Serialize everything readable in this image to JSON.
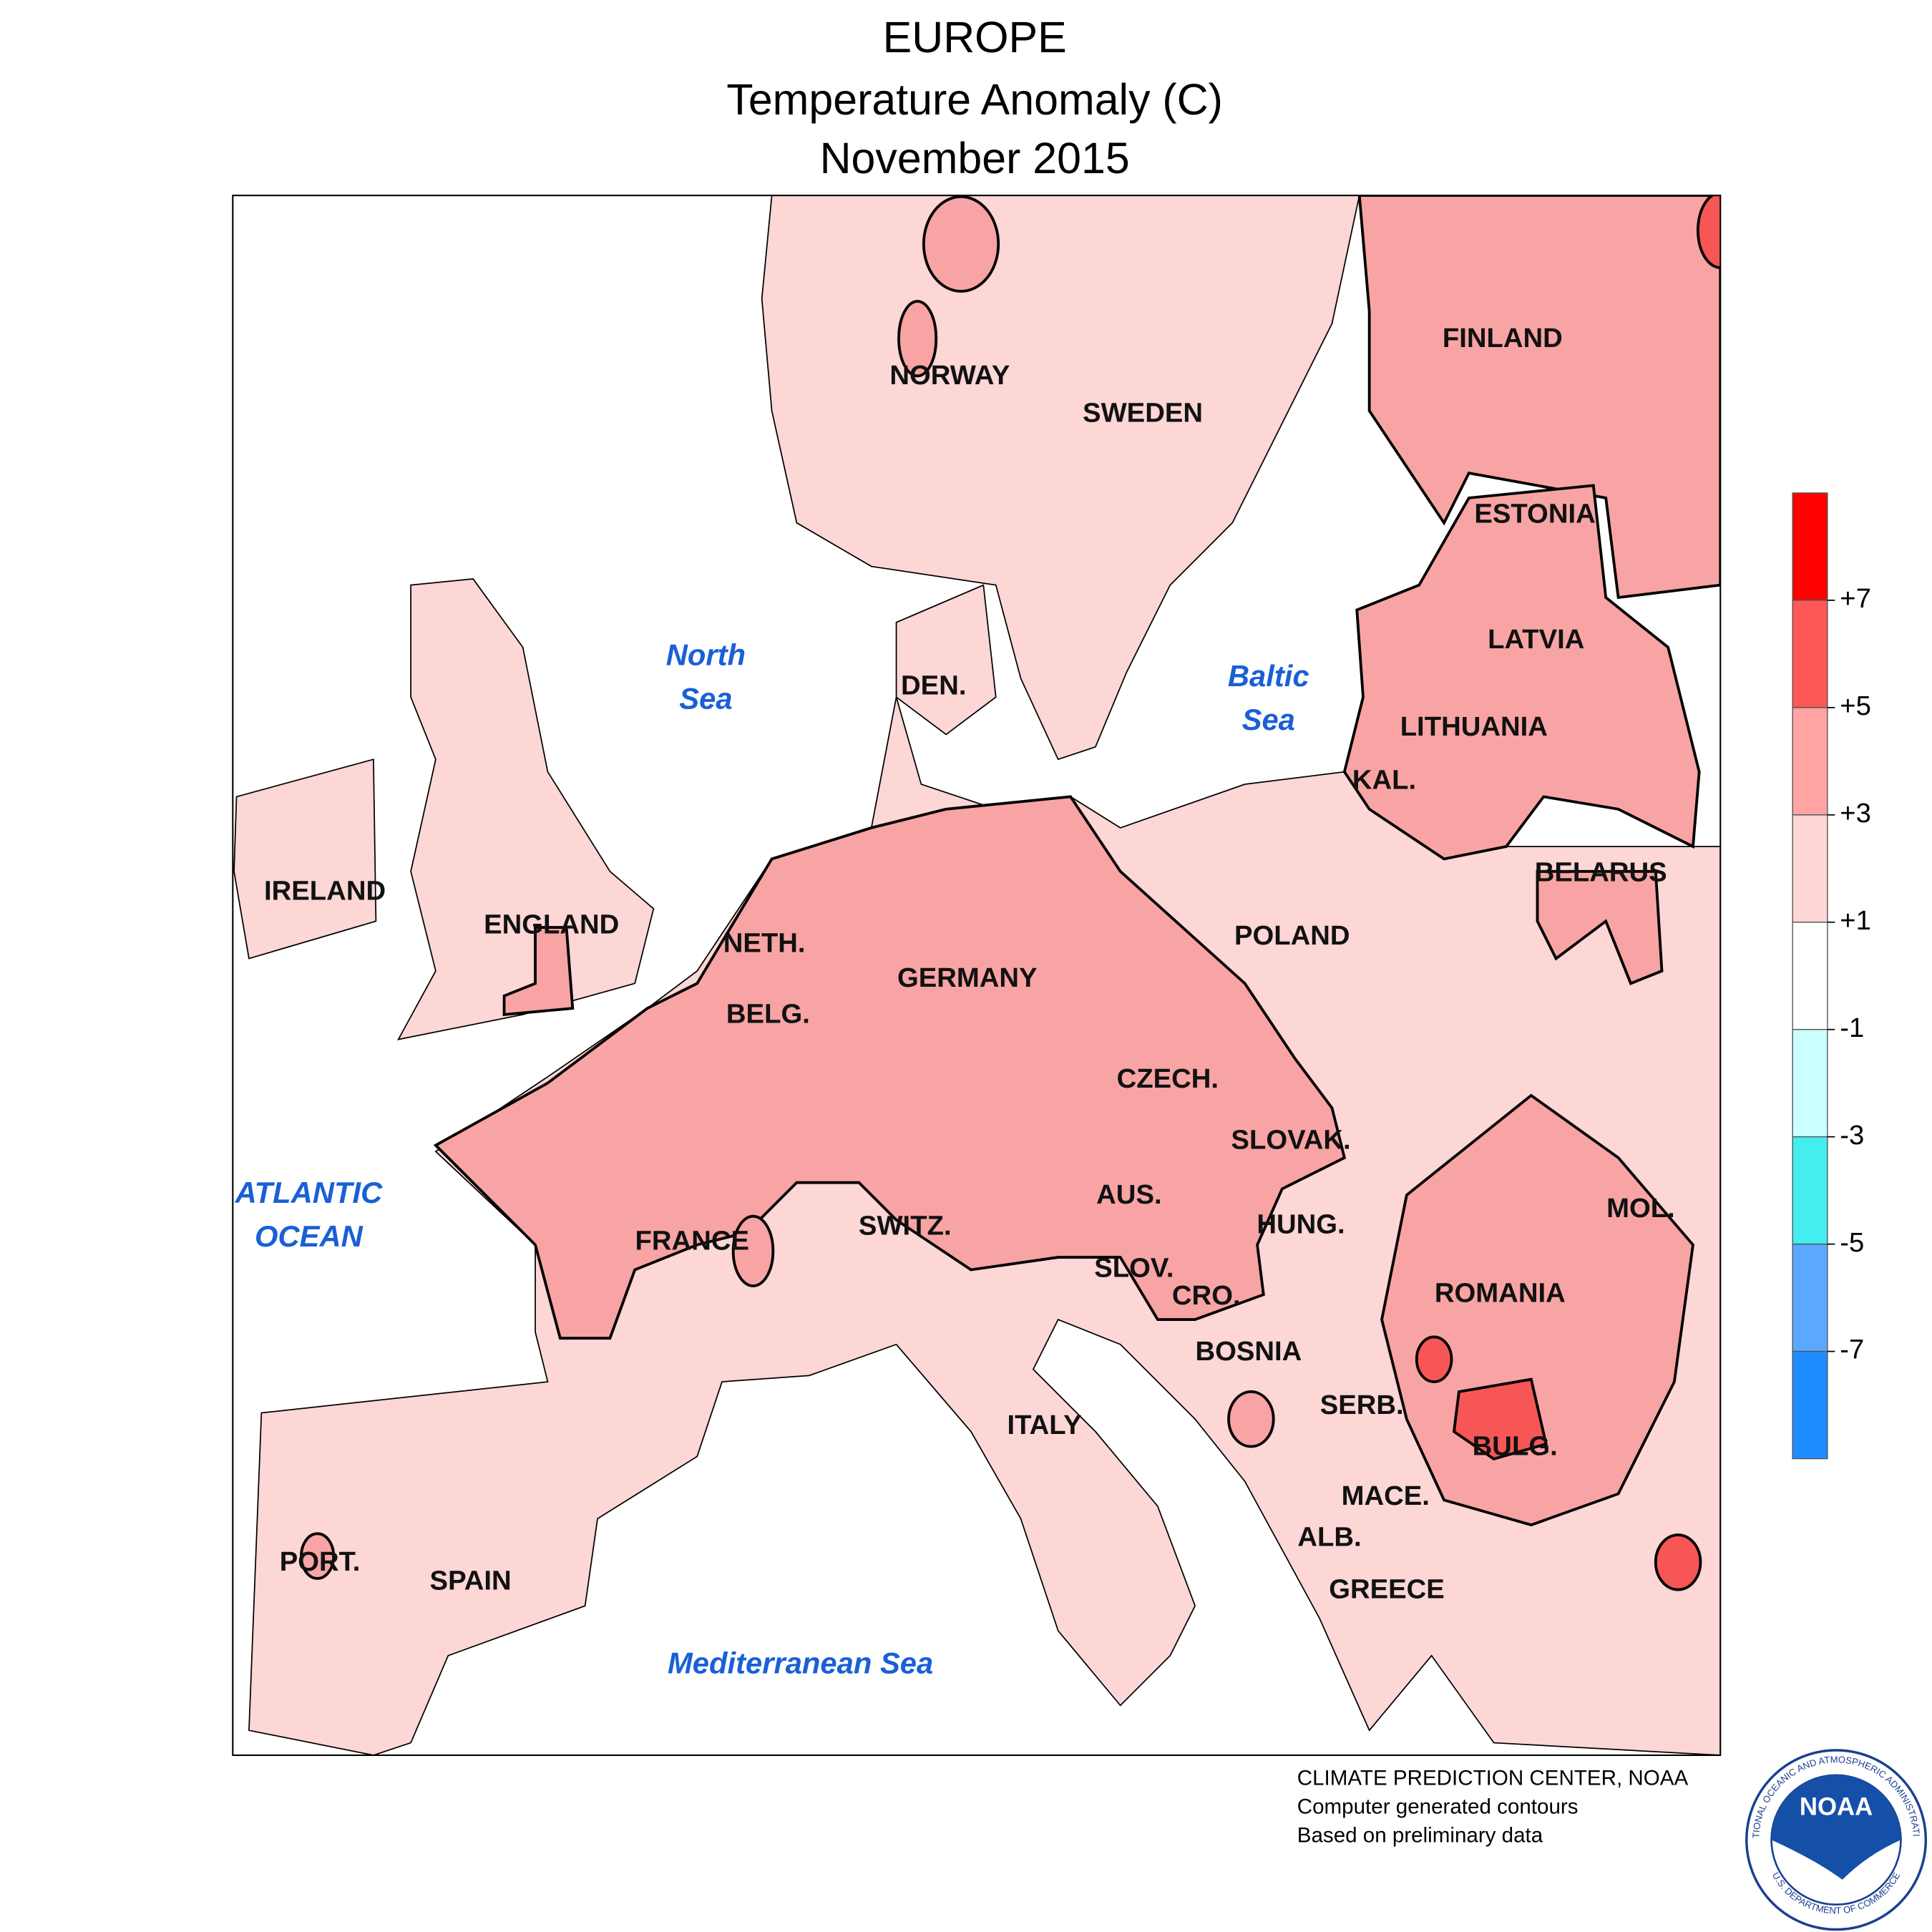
{
  "header": {
    "title": "EUROPE",
    "subtitle": "Temperature Anomaly (C)",
    "period": "November 2015"
  },
  "map": {
    "country_labels": [
      "NORWAY",
      "SWEDEN",
      "FINLAND",
      "ESTONIA",
      "LATVIA",
      "LITHUANIA",
      "KAL.",
      "BELARUS",
      "POLAND",
      "DEN.",
      "IRELAND",
      "ENGLAND",
      "NETH.",
      "BELG.",
      "GERMANY",
      "CZECH.",
      "SLOVAK.",
      "AUS.",
      "HUNG.",
      "FRANCE",
      "SWITZ.",
      "SLOV.",
      "CRO.",
      "ROMANIA",
      "MOL.",
      "BOSNIA",
      "SERB.",
      "BULG.",
      "ITALY",
      "MACE.",
      "ALB.",
      "GREECE",
      "PORT.",
      "SPAIN"
    ],
    "sea_labels": [
      {
        "lines": [
          "North",
          "Sea"
        ]
      },
      {
        "lines": [
          "Baltic",
          "Sea"
        ]
      },
      {
        "lines": [
          "ATLANTIC",
          "OCEAN"
        ]
      },
      {
        "lines": [
          "Mediterranean Sea"
        ]
      }
    ]
  },
  "legend": {
    "colors": [
      "#ff0000",
      "#ff5656",
      "#ffa3a3",
      "#ffd6d6",
      "#ffffff",
      "#ccffff",
      "#44eeee",
      "#5aa8ff",
      "#1e8cff"
    ],
    "ticks": [
      {
        "value": 7,
        "label": "+7"
      },
      {
        "value": 5,
        "label": "+5"
      },
      {
        "value": 3,
        "label": "+3"
      },
      {
        "value": 1,
        "label": "+1"
      },
      -1,
      -3,
      -5,
      -7
    ]
  },
  "footer": {
    "lines": [
      "CLIMATE PREDICTION CENTER, NOAA",
      "Computer generated contours",
      "Based on preliminary data"
    ]
  },
  "logo": {
    "text": "NOAA",
    "ring_top": "NATIONAL OCEANIC AND ATMOSPHERIC ADMINISTRATION",
    "ring_bottom": "U.S. DEPARTMENT OF COMMERCE"
  }
}
